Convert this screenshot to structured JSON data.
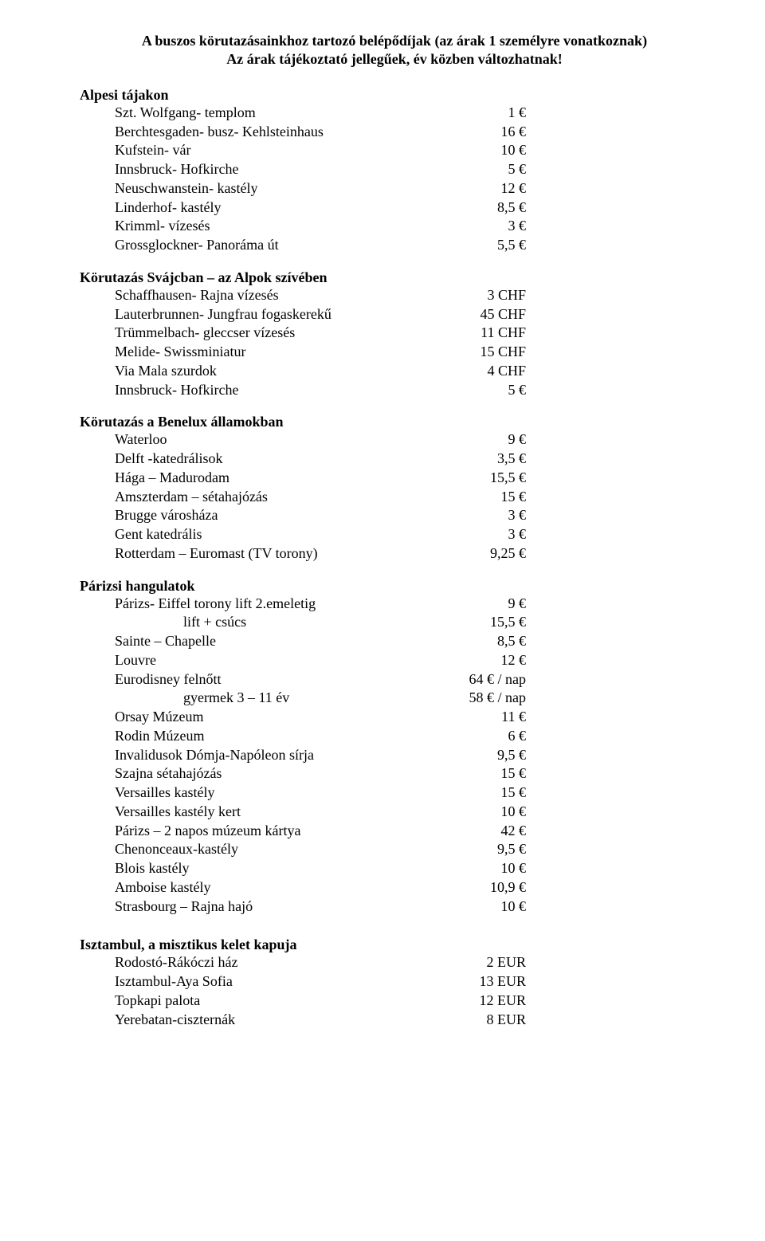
{
  "title_line1": "A buszos körutazásainkhoz tartozó belépődíjak (az árak 1 személyre vonatkoznak)",
  "title_line2": "Az árak tájékoztató jellegűek, év közben változhatnak!",
  "sections": {
    "alpesi": {
      "heading": "Alpesi tájakon",
      "rows": [
        {
          "label": "Szt. Wolfgang- templom",
          "value": "1 €"
        },
        {
          "label": "Berchtesgaden- busz- Kehlsteinhaus",
          "value": "16 €"
        },
        {
          "label": "Kufstein- vár",
          "value": "10 €"
        },
        {
          "label": "Innsbruck- Hofkirche",
          "value": "5 €"
        },
        {
          "label": "Neuschwanstein- kastély",
          "value": "12 €"
        },
        {
          "label": "Linderhof- kastély",
          "value": "8,5 €"
        },
        {
          "label": "Krimml- vízesés",
          "value": "3 €"
        },
        {
          "label": "Grossglockner- Panoráma út",
          "value": "5,5 €"
        }
      ]
    },
    "svajc": {
      "heading": "Körutazás Svájcban – az Alpok szívében",
      "rows": [
        {
          "label": "Schaffhausen- Rajna vízesés",
          "value": "3 CHF"
        },
        {
          "label": "Lauterbrunnen- Jungfrau fogaskerekű",
          "value": "45 CHF"
        },
        {
          "label": "Trümmelbach- gleccser vízesés",
          "value": "11 CHF"
        },
        {
          "label": "Melide- Swissminiatur",
          "value": "15 CHF"
        },
        {
          "label": "Via Mala szurdok",
          "value": "4 CHF"
        },
        {
          "label": "Innsbruck- Hofkirche",
          "value": "5 €"
        }
      ]
    },
    "benelux": {
      "heading": "Körutazás a Benelux államokban",
      "rows": [
        {
          "label": "Waterloo",
          "value": "9 €"
        },
        {
          "label": "Delft -katedrálisok",
          "value": "3,5 €"
        },
        {
          "label": "Hága – Madurodam",
          "value": "15,5 €"
        },
        {
          "label": "Amszterdam – sétahajózás",
          "value": "15 €"
        },
        {
          "label": "Brugge városháza",
          "value": "3 €"
        },
        {
          "label": "Gent katedrális",
          "value": "3 €"
        },
        {
          "label": "Rotterdam – Euromast (TV torony)",
          "value": "9,25 €"
        }
      ]
    },
    "parizs": {
      "heading": "Párizsi hangulatok",
      "rows": [
        {
          "label": "Párizs- Eiffel torony lift 2.emeletig",
          "value": "9 €",
          "indent": 1
        },
        {
          "label": "lift + csúcs",
          "value": "15,5 €",
          "indent": 3
        },
        {
          "label": "Sainte – Chapelle",
          "value": "8,5 €",
          "indent": 1
        },
        {
          "label": "Louvre",
          "value": "12 €",
          "indent": 1
        },
        {
          "label": "Eurodisney felnőtt",
          "value": "64 € / nap",
          "indent": 1
        },
        {
          "label": "gyermek 3 – 11 év",
          "value": "58 € / nap",
          "indent": 3
        },
        {
          "label": "Orsay Múzeum",
          "value": "11 €",
          "indent": 1
        },
        {
          "label": "Rodin Múzeum",
          "value": "6 €",
          "indent": 1
        },
        {
          "label": "Invalidusok Dómja-Napóleon sírja",
          "value": "9,5 €",
          "indent": 1
        },
        {
          "label": "Szajna sétahajózás",
          "value": "15 €",
          "indent": 1
        },
        {
          "label": "Versailles kastély",
          "value": "15 €",
          "indent": 1
        },
        {
          "label": "Versailles kastély kert",
          "value": "10 €",
          "indent": 1
        },
        {
          "label": "Párizs – 2 napos múzeum kártya",
          "value": "42 €",
          "indent": 1
        },
        {
          "label": "Chenonceaux-kastély",
          "value": "9,5 €",
          "indent": 1
        },
        {
          "label": "Blois kastély",
          "value": "10 €",
          "indent": 1
        },
        {
          "label": "Amboise kastély",
          "value": "10,9 €",
          "indent": 1
        },
        {
          "label": "Strasbourg – Rajna hajó",
          "value": "10 €",
          "indent": 1
        }
      ]
    },
    "isztambul": {
      "heading": "Isztambul, a misztikus kelet kapuja",
      "rows": [
        {
          "label": "Rodostó-Rákóczi ház",
          "value": "2 EUR"
        },
        {
          "label": "Isztambul-Aya Sofia",
          "value": "13 EUR"
        },
        {
          "label": "Topkapi palota",
          "value": "12 EUR"
        },
        {
          "label": "Yerebatan-ciszternák",
          "value": "8 EUR"
        }
      ]
    }
  }
}
